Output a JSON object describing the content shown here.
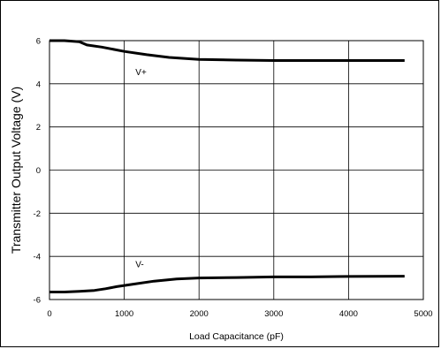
{
  "chart_data": {
    "type": "line",
    "xlabel": "Load Capacitance (pF)",
    "ylabel": "Transmitter Output Voltage (V)",
    "xlim": [
      0,
      5000
    ],
    "ylim": [
      -6,
      6
    ],
    "x_ticks": [
      0,
      1000,
      2000,
      3000,
      4000,
      5000
    ],
    "y_ticks": [
      -6,
      -4,
      -2,
      0,
      2,
      4,
      6
    ],
    "grid": true,
    "series": [
      {
        "name": "V+",
        "color": "#000000",
        "x": [
          0,
          200,
          400,
          500,
          700,
          1000,
          1300,
          1600,
          2000,
          2500,
          3000,
          3500,
          4000,
          4750
        ],
        "y": [
          6.0,
          6.0,
          5.95,
          5.8,
          5.7,
          5.5,
          5.35,
          5.22,
          5.13,
          5.1,
          5.08,
          5.08,
          5.08,
          5.08
        ]
      },
      {
        "name": "V-",
        "color": "#000000",
        "x": [
          0,
          200,
          400,
          600,
          750,
          900,
          1100,
          1400,
          1700,
          2000,
          2500,
          3000,
          3500,
          4000,
          4750
        ],
        "y": [
          -5.65,
          -5.65,
          -5.62,
          -5.58,
          -5.5,
          -5.4,
          -5.3,
          -5.15,
          -5.05,
          -5.0,
          -4.98,
          -4.95,
          -4.95,
          -4.93,
          -4.92
        ]
      }
    ]
  }
}
